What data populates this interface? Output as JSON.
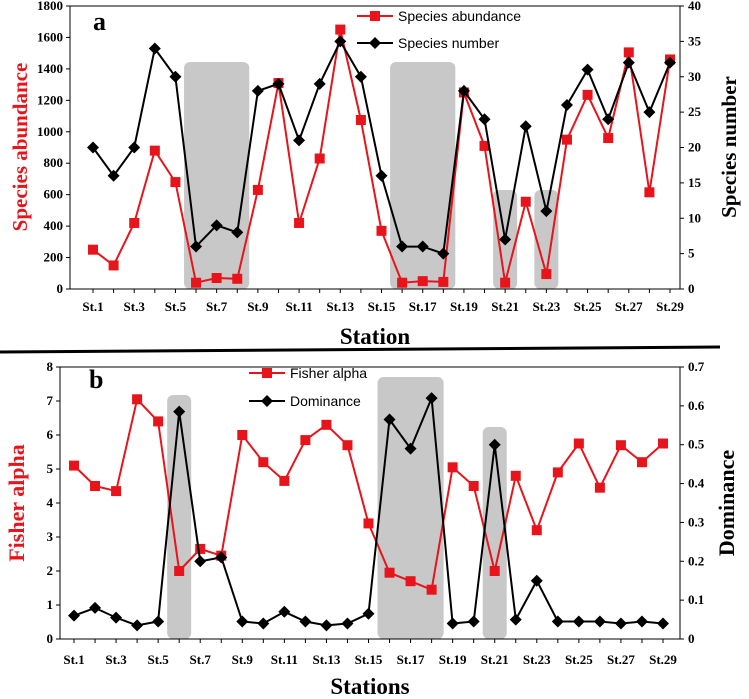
{
  "chart_data": [
    {
      "panel": "a",
      "type": "line",
      "categories": [
        "St.1",
        "St.2",
        "St.3",
        "St.4",
        "St.5",
        "St.6",
        "St.7",
        "St.8",
        "St.9",
        "St.10",
        "St.11",
        "St.12",
        "St.13",
        "St.14",
        "St.15",
        "St.16",
        "St.17",
        "St.18",
        "St.19",
        "St.20",
        "St.21",
        "St.22",
        "St.23",
        "St.24",
        "St.25",
        "St.26",
        "St.27",
        "St.28",
        "St.29"
      ],
      "tick_labels": [
        "St.1",
        "St.3",
        "St.5",
        "St.7",
        "St.9",
        "St.11",
        "St.13",
        "St.15",
        "St.17",
        "St.19",
        "St.21",
        "St.23",
        "St.25",
        "St.27",
        "St.29"
      ],
      "xlabel": "Station",
      "ylabel_left": "Species abundance",
      "ylabel_right": "Species number",
      "ylim_left": [
        0,
        1800
      ],
      "yticks_left": [
        0,
        200,
        400,
        600,
        800,
        1000,
        1200,
        1400,
        1600,
        1800
      ],
      "ylim_right": [
        0,
        40
      ],
      "yticks_right": [
        0,
        5,
        10,
        15,
        20,
        25,
        30,
        35,
        40
      ],
      "shaded_station_ranges": [
        [
          6,
          8
        ],
        [
          16,
          18
        ],
        [
          21,
          21
        ],
        [
          23,
          23
        ]
      ],
      "series": [
        {
          "name": "Species abundance",
          "axis": "left",
          "color": "#e8141b",
          "marker": "square",
          "values": [
            250,
            150,
            420,
            880,
            680,
            40,
            70,
            65,
            630,
            1310,
            420,
            830,
            1650,
            1075,
            370,
            40,
            50,
            45,
            1250,
            910,
            40,
            555,
            95,
            950,
            1235,
            960,
            1505,
            615,
            1460
          ]
        },
        {
          "name": "Species number",
          "axis": "right",
          "color": "#000000",
          "marker": "diamond",
          "values": [
            20,
            16,
            20,
            34,
            30,
            6,
            9,
            8,
            28,
            29,
            21,
            29,
            35,
            30,
            16,
            6,
            6,
            5,
            28,
            24,
            7,
            23,
            11,
            26,
            31,
            24,
            32,
            25,
            32
          ]
        }
      ]
    },
    {
      "panel": "b",
      "type": "line",
      "categories": [
        "St.1",
        "St.2",
        "St.3",
        "St.4",
        "St.5",
        "St.6",
        "St.7",
        "St.8",
        "St.9",
        "St.10",
        "St.11",
        "St.12",
        "St.13",
        "St.14",
        "St.15",
        "St.16",
        "St.17",
        "St.18",
        "St.19",
        "St.20",
        "St.21",
        "St.22",
        "St.23",
        "St.24",
        "St.25",
        "St.26",
        "St.27",
        "St.28",
        "St.29"
      ],
      "tick_labels": [
        "St.1",
        "St.3",
        "St.5",
        "St.7",
        "St.9",
        "St.11",
        "St.13",
        "St.15",
        "St.17",
        "St.19",
        "St.21",
        "St.23",
        "St.25",
        "St.27",
        "St.29"
      ],
      "xlabel": "Stations",
      "ylabel_left": "Fisher alpha",
      "ylabel_right": "Dominance",
      "ylim_left": [
        0,
        8
      ],
      "yticks_left": [
        0,
        1,
        2,
        3,
        4,
        5,
        6,
        7,
        8
      ],
      "ylim_right": [
        0,
        0.7
      ],
      "yticks_right": [
        0,
        0.1,
        0.2,
        0.3,
        0.4,
        0.5,
        0.6,
        0.7
      ],
      "shaded_station_ranges": [
        [
          6,
          6
        ],
        [
          16,
          18
        ],
        [
          21,
          21
        ]
      ],
      "series": [
        {
          "name": "Fisher alpha",
          "axis": "left",
          "color": "#e8141b",
          "marker": "square",
          "values": [
            5.1,
            4.5,
            4.35,
            7.05,
            6.4,
            2.0,
            2.65,
            2.45,
            6.0,
            5.2,
            4.65,
            5.85,
            6.3,
            5.7,
            3.4,
            1.95,
            1.7,
            1.45,
            5.05,
            4.5,
            2.0,
            4.8,
            3.2,
            4.9,
            5.75,
            4.45,
            5.7,
            5.2,
            5.75
          ]
        },
        {
          "name": "Dominance",
          "axis": "right",
          "color": "#000000",
          "marker": "diamond",
          "values": [
            0.06,
            0.08,
            0.055,
            0.035,
            0.045,
            0.585,
            0.2,
            0.21,
            0.045,
            0.04,
            0.07,
            0.045,
            0.035,
            0.04,
            0.065,
            0.565,
            0.49,
            0.62,
            0.04,
            0.045,
            0.5,
            0.05,
            0.15,
            0.045,
            0.045,
            0.045,
            0.04,
            0.045,
            0.04
          ]
        }
      ]
    }
  ],
  "panel_letters": {
    "a": "a",
    "b": "b"
  },
  "colors": {
    "red": "#e8141b",
    "black": "#000000",
    "shade": "#c8c8c8"
  }
}
